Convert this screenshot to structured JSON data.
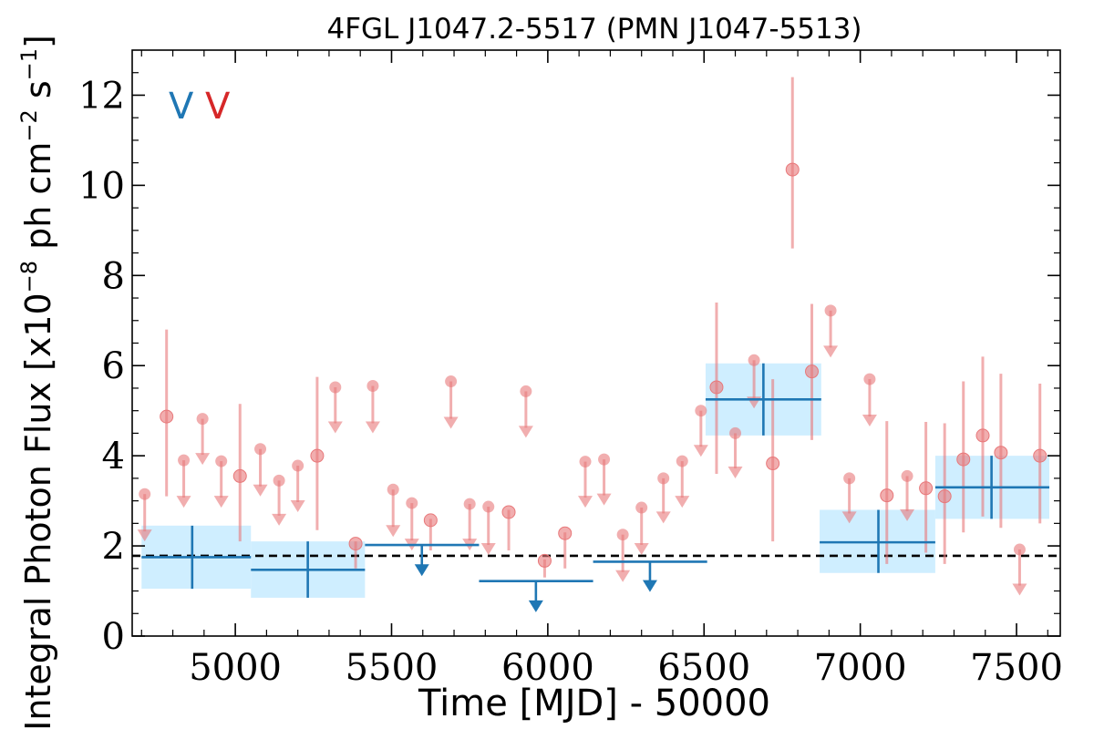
{
  "chart_data": {
    "type": "scatter",
    "title": "4FGL J1047.2-5517 (PMN J1047-5513)",
    "xlabel": "Time [MJD] - 50000",
    "ylabel_main": "Integral Photon Flux [x10",
    "ylabel_exp1": "−8",
    "ylabel_mid": " ph cm",
    "ylabel_exp2": "−2",
    "ylabel_end": " s",
    "ylabel_exp3": "−1",
    "ylabel_close": "]",
    "xlim": [
      4670,
      7640
    ],
    "ylim": [
      0,
      13
    ],
    "xticks": [
      5000,
      5500,
      6000,
      6500,
      7000,
      7500
    ],
    "xtick_labels": [
      "5000",
      "5500",
      "6000",
      "6500",
      "7000",
      "7500"
    ],
    "yticks": [
      0,
      2,
      4,
      6,
      8,
      10,
      12
    ],
    "ytick_labels": [
      "0",
      "2",
      "4",
      "6",
      "8",
      "10",
      "12"
    ],
    "grid": false,
    "legend": {
      "placement": "top-left",
      "markers": [
        {
          "text": "V",
          "color": "#1f77b4"
        },
        {
          "text": "V",
          "color": "#d62728"
        }
      ]
    },
    "reference_line": {
      "y": 1.78,
      "style": "dashed",
      "color": "#000000"
    },
    "colors": {
      "fine_bins": "#e8787a",
      "coarse_bins": "#1f77b4",
      "coarse_band": "#cfeeff"
    },
    "series": [
      {
        "bin": "fine",
        "detections": [
          {
            "x": 4780,
            "y": 4.87,
            "ylo": 3.1,
            "yhi": 6.8
          },
          {
            "x": 5015,
            "y": 3.55,
            "ylo": 2.1,
            "yhi": 5.15
          },
          {
            "x": 5262,
            "y": 4.0,
            "ylo": 2.35,
            "yhi": 5.75
          },
          {
            "x": 5385,
            "y": 2.05,
            "ylo": 1.5,
            "yhi": 2.1
          },
          {
            "x": 5625,
            "y": 2.57,
            "ylo": 1.9,
            "yhi": 2.6
          },
          {
            "x": 5875,
            "y": 2.75,
            "ylo": 1.9,
            "yhi": 2.8
          },
          {
            "x": 5990,
            "y": 1.67,
            "ylo": 1.3,
            "yhi": 1.7
          },
          {
            "x": 6055,
            "y": 2.28,
            "ylo": 1.5,
            "yhi": 2.3
          },
          {
            "x": 6540,
            "y": 5.52,
            "ylo": 3.6,
            "yhi": 7.4
          },
          {
            "x": 6720,
            "y": 3.83,
            "ylo": 2.1,
            "yhi": 5.7
          },
          {
            "x": 6783,
            "y": 10.35,
            "ylo": 8.6,
            "yhi": 12.4
          },
          {
            "x": 6845,
            "y": 5.87,
            "ylo": 4.35,
            "yhi": 7.37
          },
          {
            "x": 7085,
            "y": 3.12,
            "ylo": 1.6,
            "yhi": 4.77
          },
          {
            "x": 7210,
            "y": 3.28,
            "ylo": 1.85,
            "yhi": 4.75
          },
          {
            "x": 7270,
            "y": 3.1,
            "ylo": 1.6,
            "yhi": 4.72
          },
          {
            "x": 7330,
            "y": 3.92,
            "ylo": 2.3,
            "yhi": 5.65
          },
          {
            "x": 7392,
            "y": 4.45,
            "ylo": 2.65,
            "yhi": 6.2
          },
          {
            "x": 7450,
            "y": 4.07,
            "ylo": 2.4,
            "yhi": 5.82
          },
          {
            "x": 7575,
            "y": 4.0,
            "ylo": 2.5,
            "yhi": 5.6
          }
        ],
        "upper_limits": [
          {
            "x": 4710,
            "y": 3.15,
            "tip": 2.2
          },
          {
            "x": 4895,
            "y": 4.82,
            "tip": 3.9
          },
          {
            "x": 4835,
            "y": 3.9,
            "tip": 2.95
          },
          {
            "x": 4955,
            "y": 3.88,
            "tip": 2.95
          },
          {
            "x": 5080,
            "y": 4.15,
            "tip": 3.2
          },
          {
            "x": 5140,
            "y": 3.45,
            "tip": 2.55
          },
          {
            "x": 5200,
            "y": 3.78,
            "tip": 2.85
          },
          {
            "x": 5320,
            "y": 5.52,
            "tip": 4.6
          },
          {
            "x": 5440,
            "y": 5.55,
            "tip": 4.6
          },
          {
            "x": 5505,
            "y": 3.25,
            "tip": 2.3
          },
          {
            "x": 5565,
            "y": 2.95,
            "tip": 2.0
          },
          {
            "x": 5690,
            "y": 5.65,
            "tip": 4.7
          },
          {
            "x": 5750,
            "y": 2.93,
            "tip": 2.0
          },
          {
            "x": 5810,
            "y": 2.87,
            "tip": 1.9
          },
          {
            "x": 5930,
            "y": 5.43,
            "tip": 4.5
          },
          {
            "x": 6120,
            "y": 3.87,
            "tip": 2.95
          },
          {
            "x": 6180,
            "y": 3.92,
            "tip": 3.0
          },
          {
            "x": 6240,
            "y": 2.25,
            "tip": 1.3
          },
          {
            "x": 6300,
            "y": 2.85,
            "tip": 1.9
          },
          {
            "x": 6370,
            "y": 3.5,
            "tip": 2.6
          },
          {
            "x": 6430,
            "y": 3.88,
            "tip": 2.95
          },
          {
            "x": 6490,
            "y": 5.0,
            "tip": 4.08
          },
          {
            "x": 6600,
            "y": 4.5,
            "tip": 3.6
          },
          {
            "x": 6660,
            "y": 6.12,
            "tip": 5.15
          },
          {
            "x": 6905,
            "y": 7.22,
            "tip": 6.28
          },
          {
            "x": 6965,
            "y": 3.5,
            "tip": 2.6
          },
          {
            "x": 7030,
            "y": 5.7,
            "tip": 4.75
          },
          {
            "x": 7150,
            "y": 3.55,
            "tip": 2.65
          },
          {
            "x": 7510,
            "y": 1.92,
            "tip": 1.0
          }
        ]
      },
      {
        "bin": "coarse",
        "detections": [
          {
            "x": 4862,
            "xlo": 4700,
            "xhi": 5050,
            "y": 1.75,
            "ylo": 1.05,
            "yhi": 2.45,
            "band_lo": 1.05,
            "band_hi": 2.45
          },
          {
            "x": 5232,
            "xlo": 5050,
            "xhi": 5415,
            "y": 1.47,
            "ylo": 0.85,
            "yhi": 2.1,
            "band_lo": 0.85,
            "band_hi": 2.1
          },
          {
            "x": 7058,
            "xlo": 6870,
            "xhi": 7240,
            "y": 2.08,
            "ylo": 1.4,
            "yhi": 2.8,
            "band_lo": 1.4,
            "band_hi": 2.8
          },
          {
            "x": 7420,
            "xlo": 7240,
            "xhi": 7605,
            "y": 3.3,
            "ylo": 2.6,
            "yhi": 4.0,
            "band_lo": 2.6,
            "band_hi": 4.0
          },
          {
            "x": 6690,
            "xlo": 6505,
            "xhi": 6875,
            "y": 5.25,
            "ylo": 4.45,
            "yhi": 6.05,
            "band_lo": 4.45,
            "band_hi": 6.05
          }
        ],
        "upper_limits": [
          {
            "x": 5597,
            "xlo": 5415,
            "xhi": 5780,
            "y": 2.02,
            "tip": 1.45
          },
          {
            "x": 5962,
            "xlo": 5780,
            "xhi": 6145,
            "y": 1.22,
            "tip": 0.65
          },
          {
            "x": 6327,
            "xlo": 6145,
            "xhi": 6510,
            "y": 1.65,
            "tip": 1.1
          }
        ]
      }
    ]
  }
}
